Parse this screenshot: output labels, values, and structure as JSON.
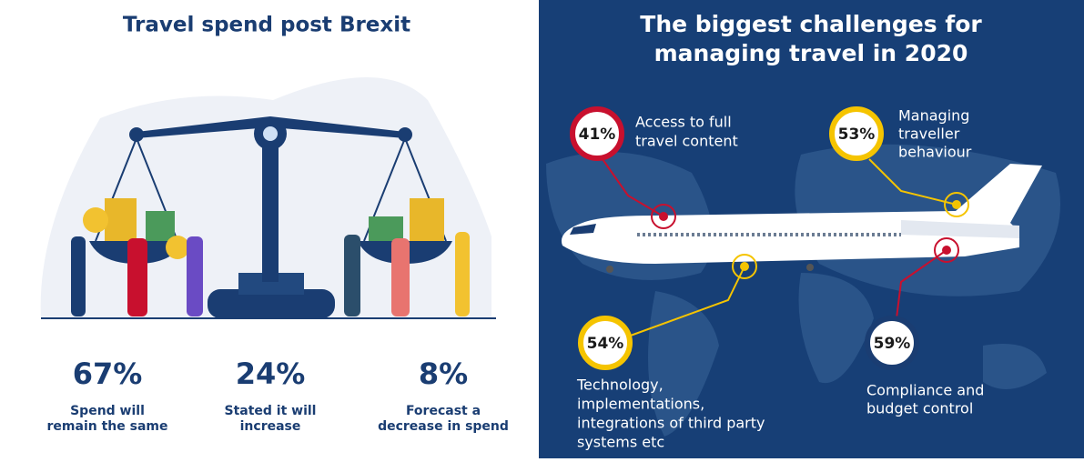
{
  "left": {
    "title": "Travel spend post Brexit",
    "stats": [
      {
        "value": "67%",
        "label": [
          "Spend will",
          "remain the same"
        ]
      },
      {
        "value": "24%",
        "label": [
          "Stated it will",
          "increase"
        ]
      },
      {
        "value": "8%",
        "label": [
          "Forecast a",
          "decrease in spend"
        ]
      }
    ]
  },
  "right": {
    "title": [
      "The biggest challenges for",
      "managing travel in 2020"
    ],
    "challenges": [
      {
        "value": "41%",
        "label": [
          "Access to full",
          "travel content"
        ]
      },
      {
        "value": "53%",
        "label": [
          "Managing",
          "traveller",
          "behaviour"
        ]
      },
      {
        "value": "54%",
        "label": [
          "Technology,",
          "implementations,",
          "integrations of third party",
          "systems etc"
        ]
      },
      {
        "value": "59%",
        "label": [
          "Compliance and",
          "budget control"
        ]
      }
    ]
  }
}
